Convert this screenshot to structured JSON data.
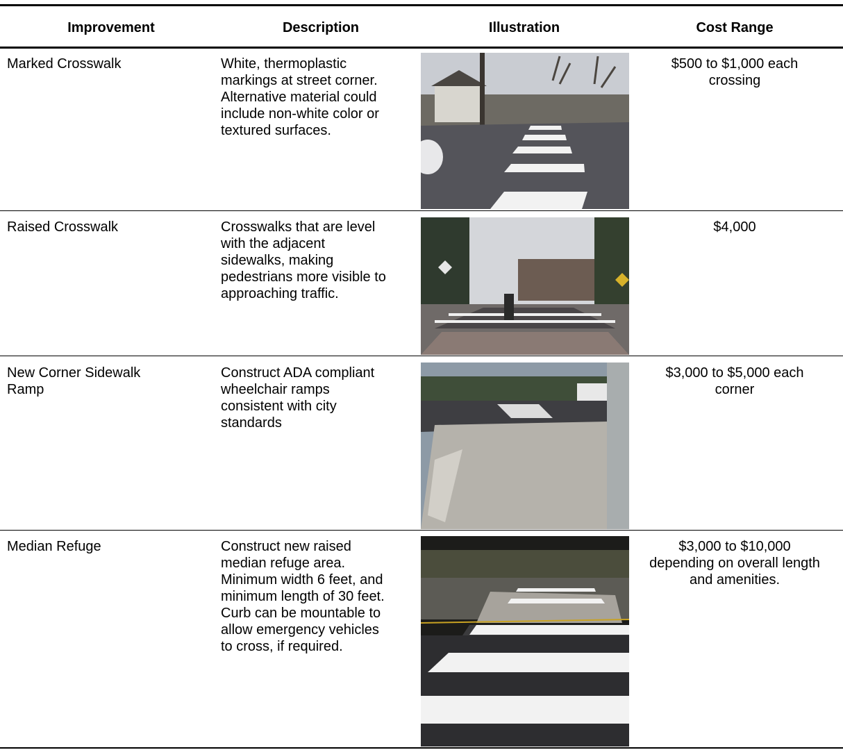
{
  "header": {
    "columns": [
      "Improvement",
      "Description",
      "Illustration",
      "Cost Range"
    ]
  },
  "rows": [
    {
      "improvement": [
        "Marked Crosswalk"
      ],
      "description": [
        "White, thermoplastic",
        "markings at street corner.",
        "Alternative material could",
        "include non-white color or",
        "textured surfaces."
      ],
      "cost": [
        "$500 to $1,000 each",
        "crossing"
      ]
    },
    {
      "improvement": [
        "Raised Crosswalk"
      ],
      "description": [
        "Crosswalks that are level",
        "with the adjacent",
        "sidewalks, making",
        "pedestrians more visible to",
        "approaching traffic."
      ],
      "cost": [
        "$4,000"
      ]
    },
    {
      "improvement": [
        "New Corner Sidewalk",
        "Ramp"
      ],
      "description": [
        "Construct ADA compliant",
        "wheelchair ramps",
        "consistent with city",
        "standards"
      ],
      "cost": [
        "$3,000 to $5,000 each",
        "corner"
      ]
    },
    {
      "improvement": [
        "Median Refuge"
      ],
      "description": [
        "Construct new raised",
        "median refuge area.",
        "Minimum width 6 feet, and",
        "minimum length of 30 feet.",
        "Curb can be mountable to",
        "allow emergency vehicles",
        "to cross, if required."
      ],
      "cost": [
        "$3,000 to $10,000",
        "depending on overall length",
        "and amenities."
      ]
    }
  ]
}
